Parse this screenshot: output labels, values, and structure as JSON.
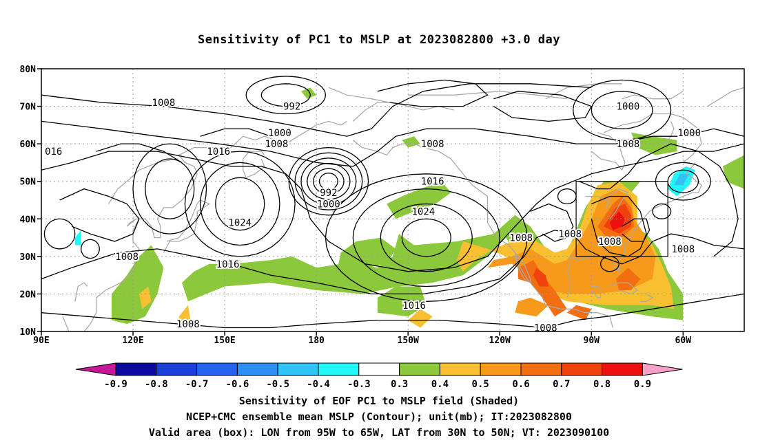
{
  "title": "Sensitivity of PC1 to MSLP at 2023082800 +3.0 day",
  "map": {
    "lon_labels": [
      "90E",
      "120E",
      "150E",
      "180",
      "150W",
      "120W",
      "90W",
      "60W"
    ],
    "lat_labels": [
      "80N",
      "70N",
      "60N",
      "50N",
      "40N",
      "30N",
      "20N",
      "10N"
    ],
    "lon_range": [
      90,
      320
    ],
    "lat_range": [
      10,
      80
    ],
    "valid_area_box": {
      "lon_west": -95,
      "lon_east": -65,
      "lat_south": 30,
      "lat_north": 50
    },
    "contour_labels": [
      {
        "text": "1008",
        "lon": 130,
        "lat": 71
      },
      {
        "text": "992",
        "lon": 172,
        "lat": 70
      },
      {
        "text": "1000",
        "lon": 168,
        "lat": 63
      },
      {
        "text": "1008",
        "lon": 167,
        "lat": 60
      },
      {
        "text": "016",
        "lon": 94,
        "lat": 58
      },
      {
        "text": "1016",
        "lon": 148,
        "lat": 58
      },
      {
        "text": "1008",
        "lon": 218,
        "lat": 60
      },
      {
        "text": "1000",
        "lon": 282,
        "lat": 70
      },
      {
        "text": "1000",
        "lon": 302,
        "lat": 63
      },
      {
        "text": "1008",
        "lon": 282,
        "lat": 60
      },
      {
        "text": "1016",
        "lon": 218,
        "lat": 50
      },
      {
        "text": "1024",
        "lon": 215,
        "lat": 42
      },
      {
        "text": "992",
        "lon": 184,
        "lat": 47
      },
      {
        "text": "1000",
        "lon": 184,
        "lat": 44
      },
      {
        "text": "1024",
        "lon": 155,
        "lat": 39
      },
      {
        "text": "1008",
        "lon": 247,
        "lat": 35
      },
      {
        "text": "1008",
        "lon": 263,
        "lat": 36
      },
      {
        "text": "1008",
        "lon": 276,
        "lat": 34
      },
      {
        "text": "1008",
        "lon": 300,
        "lat": 32
      },
      {
        "text": "1008",
        "lon": 118,
        "lat": 30
      },
      {
        "text": "1016",
        "lon": 151,
        "lat": 28
      },
      {
        "text": "1016",
        "lon": 212,
        "lat": 17
      },
      {
        "text": "1008",
        "lon": 138,
        "lat": 12
      },
      {
        "text": "1008",
        "lon": 255,
        "lat": 11
      }
    ]
  },
  "colorbar": {
    "labels": [
      "-0.9",
      "-0.8",
      "-0.7",
      "-0.6",
      "-0.5",
      "-0.4",
      "-0.3",
      "0.3",
      "0.4",
      "0.5",
      "0.6",
      "0.7",
      "0.8",
      "0.9"
    ],
    "colors": [
      "#0a0aa0",
      "#1a3fd8",
      "#2462f0",
      "#2f8ef5",
      "#2fc4f5",
      "#22f7f7",
      "#ffffff",
      "#8cc83c",
      "#f8c030",
      "#f79a1c",
      "#f26e10",
      "#f0420c",
      "#ee1010"
    ],
    "low_end_color": "#c8189a",
    "high_end_color": "#f7a0c8"
  },
  "footer": {
    "line1": "Sensitivity of EOF PC1 to MSLP field (Shaded)",
    "line2": "NCEP+CMC ensemble mean MSLP (Contour); unit(mb); IT:2023082800",
    "line3": "Valid area (box): LON from 95W to 65W, LAT from 30N to 50N; VT: 2023090100"
  }
}
